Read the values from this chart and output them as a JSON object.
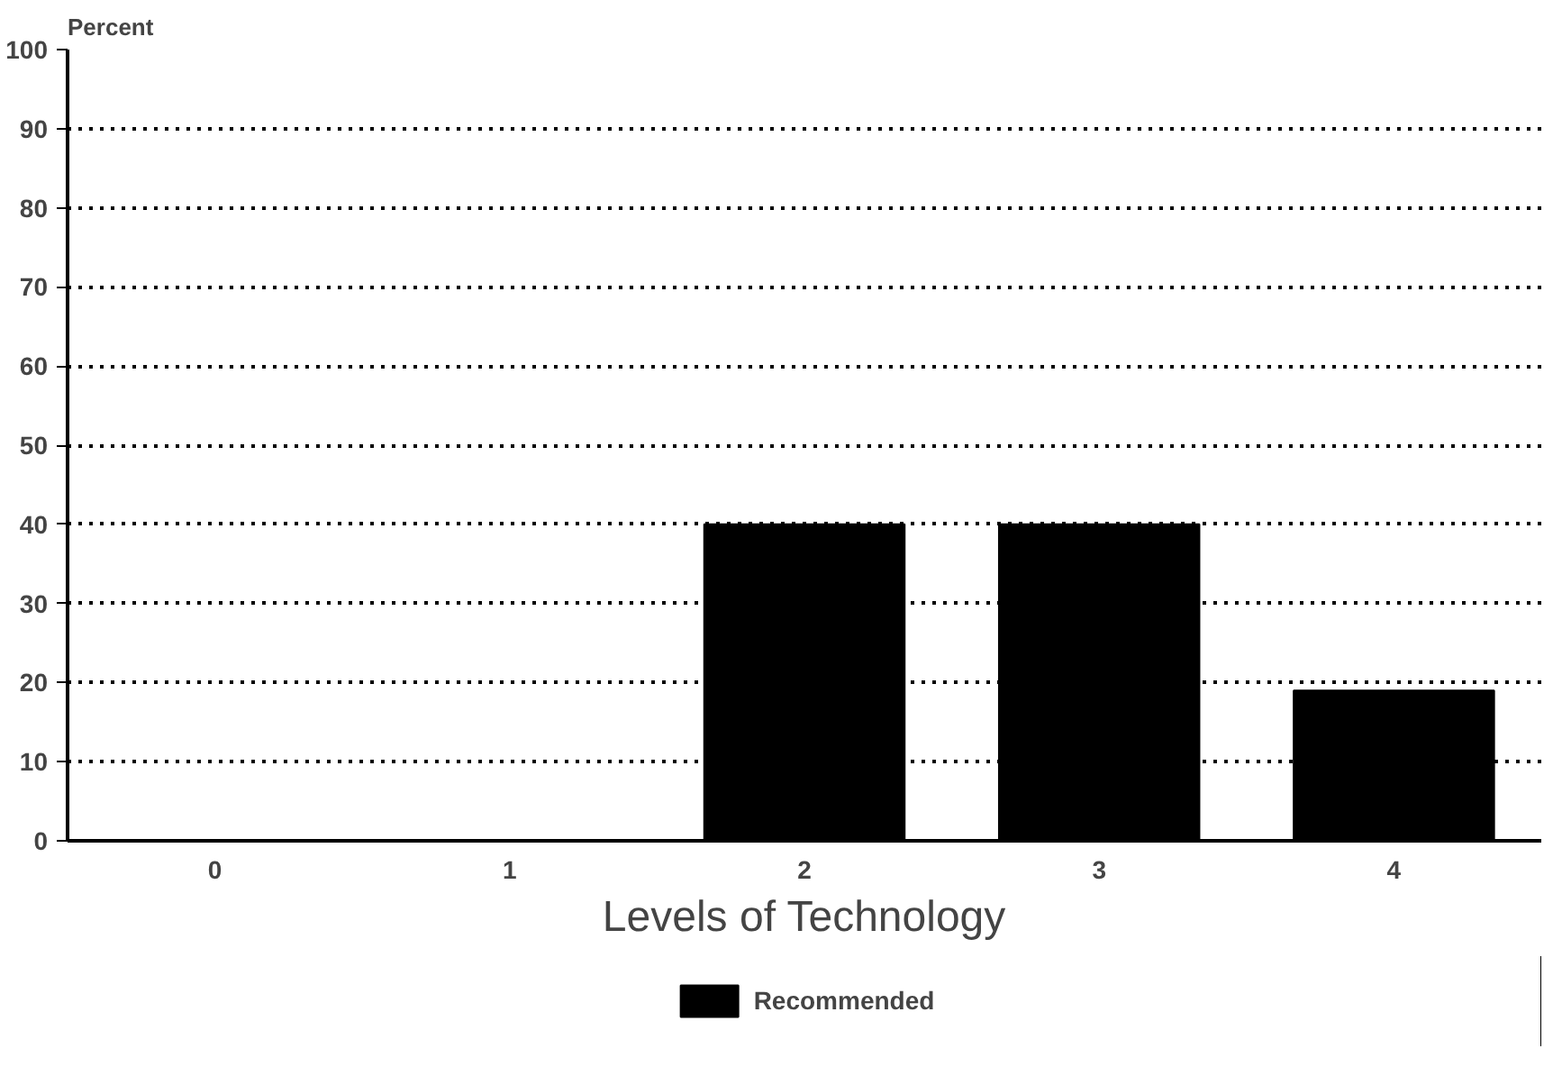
{
  "chart_data": {
    "type": "bar",
    "ylabel": "Percent",
    "xlabel": "Levels of Technology",
    "categories": [
      "0",
      "1",
      "2",
      "3",
      "4"
    ],
    "series": [
      {
        "name": "Recommended",
        "color": "#000000",
        "values": [
          0,
          0,
          40,
          40,
          19
        ]
      }
    ],
    "ylim": [
      0,
      100
    ],
    "yticks": [
      0,
      10,
      20,
      30,
      40,
      50,
      60,
      70,
      80,
      90,
      100
    ],
    "grid": "y",
    "line_style": "dotted",
    "legend": "bottom"
  }
}
